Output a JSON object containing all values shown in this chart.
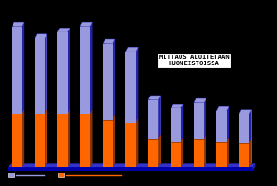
{
  "background_color": "#000000",
  "plot_bg_color": "#000000",
  "bar_total_heights": [
    10.0,
    9.2,
    9.6,
    10.0,
    8.8,
    8.2,
    4.8,
    4.2,
    4.6,
    4.0,
    3.8
  ],
  "bar_orange_heights": [
    3.8,
    3.8,
    3.8,
    3.8,
    3.4,
    3.2,
    2.0,
    1.8,
    2.0,
    1.8,
    1.7
  ],
  "bar_blue_color": "#9999dd",
  "bar_orange_color": "#ff6600",
  "bar_side_blue": "#2222aa",
  "bar_side_orange": "#883300",
  "bar_base_color": "#0000aa",
  "bar_base_top_color": "#3333cc",
  "annotation_text": "MITTAUS ALOITETAAN\nHUONEISTOISSA",
  "annotation_bar_index": 6,
  "bar_width": 0.45,
  "depth_x": 0.1,
  "depth_y": 0.3,
  "n_bars": 11,
  "xlim": [
    -0.5,
    11.2
  ],
  "ylim": [
    -0.8,
    11.5
  ]
}
